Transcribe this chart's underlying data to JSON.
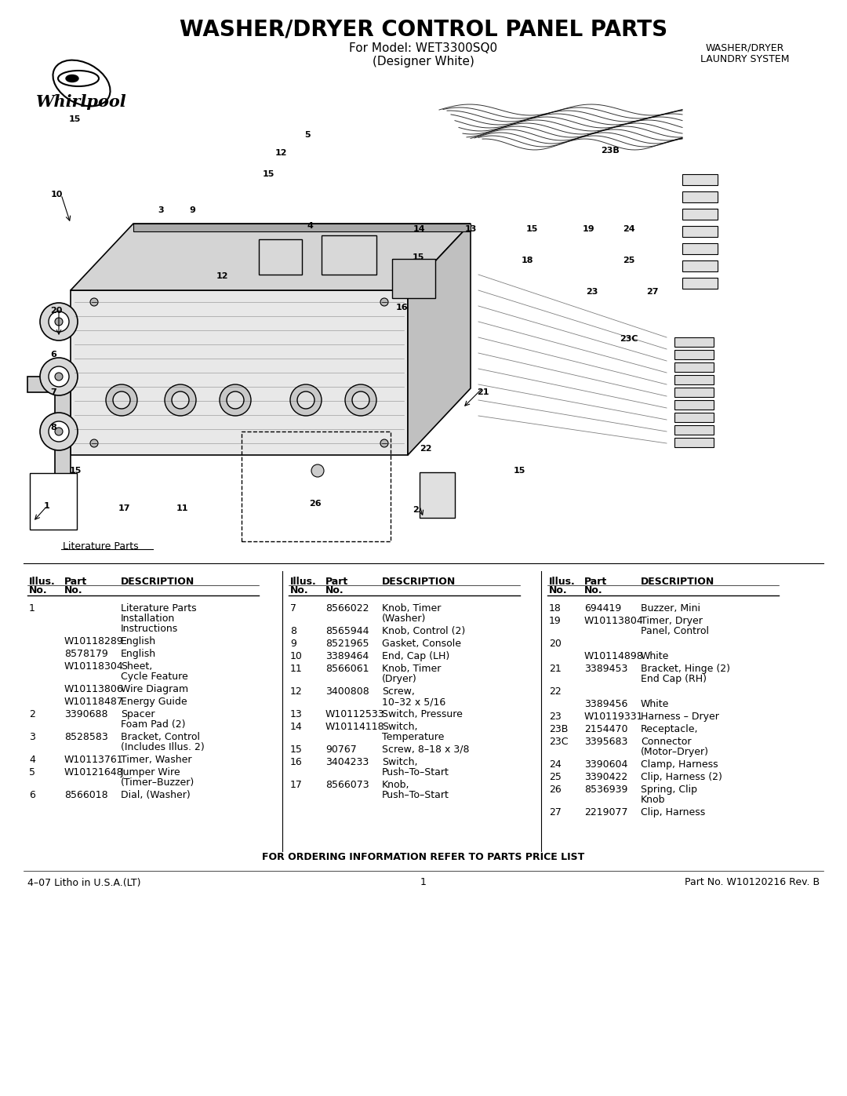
{
  "title": "WASHER/DRYER CONTROL PANEL PARTS",
  "model_line": "For Model: WET3300SQ0",
  "model_subline": "(Designer White)",
  "brand": "Whirlpool",
  "brand_sub": "WASHER/DRYER\nLAUNDRY SYSTEM",
  "literature_parts_label": "Literature Parts",
  "ordering_info": "FOR ORDERING INFORMATION REFER TO PARTS PRICE LIST",
  "footer_left": "4–07 Litho in U.S.A.(LT)",
  "footer_center": "1",
  "footer_right": "Part No. W10120216 Rev. B",
  "col1_rows": [
    [
      "1",
      "",
      "Literature Parts\nInstallation\nInstructions"
    ],
    [
      "",
      "W10118289",
      "English"
    ],
    [
      "",
      "8578179",
      "English"
    ],
    [
      "",
      "W10118304",
      "Sheet,\nCycle Feature"
    ],
    [
      "",
      "W10113806",
      "Wire Diagram"
    ],
    [
      "",
      "W10118487",
      "Energy Guide"
    ],
    [
      "2",
      "3390688",
      "Spacer\nFoam Pad (2)"
    ],
    [
      "3",
      "8528583",
      "Bracket, Control\n(Includes Illus. 2)"
    ],
    [
      "4",
      "W10113761",
      "Timer, Washer"
    ],
    [
      "5",
      "W10121648",
      "Jumper Wire\n(Timer–Buzzer)"
    ],
    [
      "6",
      "8566018",
      "Dial, (Washer)"
    ]
  ],
  "col2_rows": [
    [
      "7",
      "8566022",
      "Knob, Timer\n(Washer)"
    ],
    [
      "8",
      "8565944",
      "Knob, Control (2)"
    ],
    [
      "9",
      "8521965",
      "Gasket, Console"
    ],
    [
      "10",
      "3389464",
      "End, Cap (LH)"
    ],
    [
      "11",
      "8566061",
      "Knob, Timer\n(Dryer)"
    ],
    [
      "12",
      "3400808",
      "Screw,\n10–32 x 5/16"
    ],
    [
      "13",
      "W10112533",
      "Switch, Pressure"
    ],
    [
      "14",
      "W10114118",
      "Switch,\nTemperature"
    ],
    [
      "15",
      "90767",
      "Screw, 8–18 x 3/8"
    ],
    [
      "16",
      "3404233",
      "Switch,\nPush–To–Start"
    ],
    [
      "17",
      "8566073",
      "Knob,\nPush–To–Start"
    ]
  ],
  "col3_rows": [
    [
      "18",
      "694419",
      "Buzzer, Mini"
    ],
    [
      "19",
      "W10113804",
      "Timer, Dryer\nPanel, Control"
    ],
    [
      "20",
      "",
      ""
    ],
    [
      "",
      "W10114898",
      "White"
    ],
    [
      "21",
      "3389453",
      "Bracket, Hinge (2)\nEnd Cap (RH)"
    ],
    [
      "22",
      "",
      ""
    ],
    [
      "",
      "3389456",
      "White"
    ],
    [
      "23",
      "W10119331",
      "Harness – Dryer"
    ],
    [
      "23B",
      "2154470",
      "Receptacle,"
    ],
    [
      "23C",
      "3395683",
      "Connector\n(Motor–Dryer)"
    ],
    [
      "24",
      "3390604",
      "Clamp, Harness"
    ],
    [
      "25",
      "3390422",
      "Clip, Harness (2)"
    ],
    [
      "26",
      "8536939",
      "Spring, Clip\nKnob"
    ],
    [
      "27",
      "2219077",
      "Clip, Harness"
    ]
  ],
  "bg_color": "#ffffff",
  "text_color": "#000000"
}
